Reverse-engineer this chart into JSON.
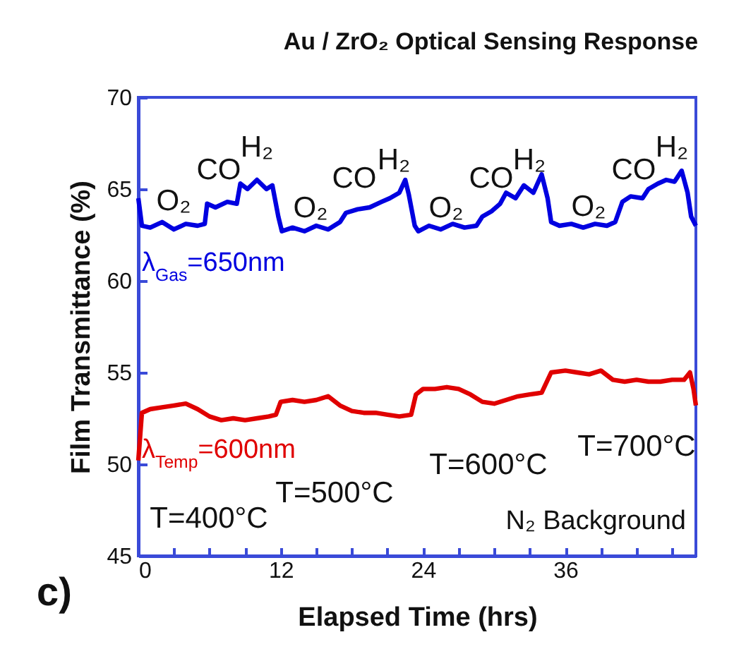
{
  "chart_data": {
    "type": "line",
    "title": "Au / ZrO₂ Optical Sensing Response",
    "xlabel": "Elapsed Time (hrs)",
    "ylabel": "Film Transmittance (%)",
    "xlim": [
      0,
      47
    ],
    "xticks": [
      0,
      {
        "value": 3,
        "label": null
      },
      {
        "value": 6,
        "label": null
      },
      {
        "value": 9,
        "label": null
      },
      12,
      {
        "value": 15,
        "label": null
      },
      {
        "value": 18,
        "label": null
      },
      {
        "value": 21,
        "label": null
      },
      24,
      {
        "value": 27,
        "label": null
      },
      {
        "value": 30,
        "label": null
      },
      {
        "value": 33,
        "label": null
      },
      36,
      {
        "value": 39,
        "label": null
      },
      {
        "value": 42,
        "label": null
      },
      {
        "value": 45,
        "label": null
      }
    ],
    "ylim": [
      45,
      70
    ],
    "yticks": [
      45,
      50,
      55,
      60,
      65,
      70
    ],
    "grid": false,
    "legend": false,
    "line_style": "solid",
    "marker": "none",
    "series": [
      {
        "name": "λ$_{Gas}$=650nm",
        "color": "#0000e0",
        "x": [
          0,
          0.3,
          1,
          2,
          3,
          4,
          5,
          5.6,
          5.8,
          6.5,
          7.5,
          8.3,
          8.6,
          9.2,
          10,
          10.8,
          11.3,
          11.8,
          12.1,
          13,
          14,
          15,
          16,
          17,
          17.5,
          18.5,
          19.5,
          20.5,
          21.2,
          22,
          22.5,
          22.8,
          23.3,
          23.6,
          24.5,
          25.5,
          26.5,
          27.5,
          28.5,
          29,
          29.8,
          30.5,
          31,
          31.8,
          32.5,
          33.3,
          34,
          34.5,
          34.8,
          35.5,
          36.5,
          37.5,
          38.5,
          39.5,
          40.2,
          40.8,
          41.5,
          42.5,
          43,
          43.8,
          44.5,
          45.2,
          45.8,
          46.3,
          46.6,
          47
        ],
        "values": [
          64.5,
          63,
          62.9,
          63.2,
          62.8,
          63.1,
          63,
          63.1,
          64.2,
          64,
          64.3,
          64.2,
          65.3,
          65,
          65.5,
          65,
          65.2,
          63.5,
          62.7,
          62.9,
          62.7,
          63,
          62.8,
          63.2,
          63.7,
          63.9,
          64,
          64.3,
          64.5,
          64.8,
          65.5,
          64.7,
          63,
          62.7,
          63,
          62.8,
          63.1,
          62.9,
          63,
          63.5,
          63.8,
          64.2,
          64.8,
          64.5,
          65.2,
          64.8,
          65.8,
          64.5,
          63.2,
          63,
          63.1,
          62.9,
          63.1,
          63,
          63.2,
          64.3,
          64.6,
          64.5,
          65,
          65.3,
          65.5,
          65.4,
          66,
          64.8,
          63.5,
          63
        ]
      },
      {
        "name": "λ$_{Temp}$=600nm",
        "color": "#e00000",
        "x": [
          0,
          0.3,
          1,
          2,
          3,
          4,
          5,
          6,
          7,
          8,
          9,
          10,
          11,
          11.6,
          12,
          13,
          14,
          15,
          16,
          17,
          18,
          19,
          20,
          21,
          22,
          23,
          23.4,
          24,
          25,
          26,
          27,
          28,
          29,
          30,
          31,
          32,
          33,
          34,
          34.8,
          36,
          37,
          38,
          39,
          40,
          41,
          42,
          43,
          44,
          45,
          46,
          46.5,
          46.8,
          47
        ],
        "values": [
          50.2,
          52.8,
          53,
          53.1,
          53.2,
          53.3,
          53,
          52.6,
          52.4,
          52.5,
          52.4,
          52.5,
          52.6,
          52.7,
          53.4,
          53.5,
          53.4,
          53.5,
          53.7,
          53.2,
          52.9,
          52.8,
          52.8,
          52.7,
          52.6,
          52.7,
          53.8,
          54.1,
          54.1,
          54.2,
          54.1,
          53.8,
          53.4,
          53.3,
          53.5,
          53.7,
          53.8,
          53.9,
          55,
          55.1,
          55,
          54.9,
          55.1,
          54.6,
          54.5,
          54.6,
          54.5,
          54.5,
          54.6,
          54.6,
          55,
          54.1,
          53.2
        ]
      }
    ],
    "annotations": [
      "O₂",
      "CO",
      "H₂",
      "O₂",
      "CO",
      "H₂",
      "O₂",
      "CO",
      "H₂",
      "O₂",
      "CO",
      "H₂",
      "T=400°C",
      "T=500°C",
      "T=600°C",
      "T=700°C",
      "N₂ Background",
      "c)"
    ]
  }
}
